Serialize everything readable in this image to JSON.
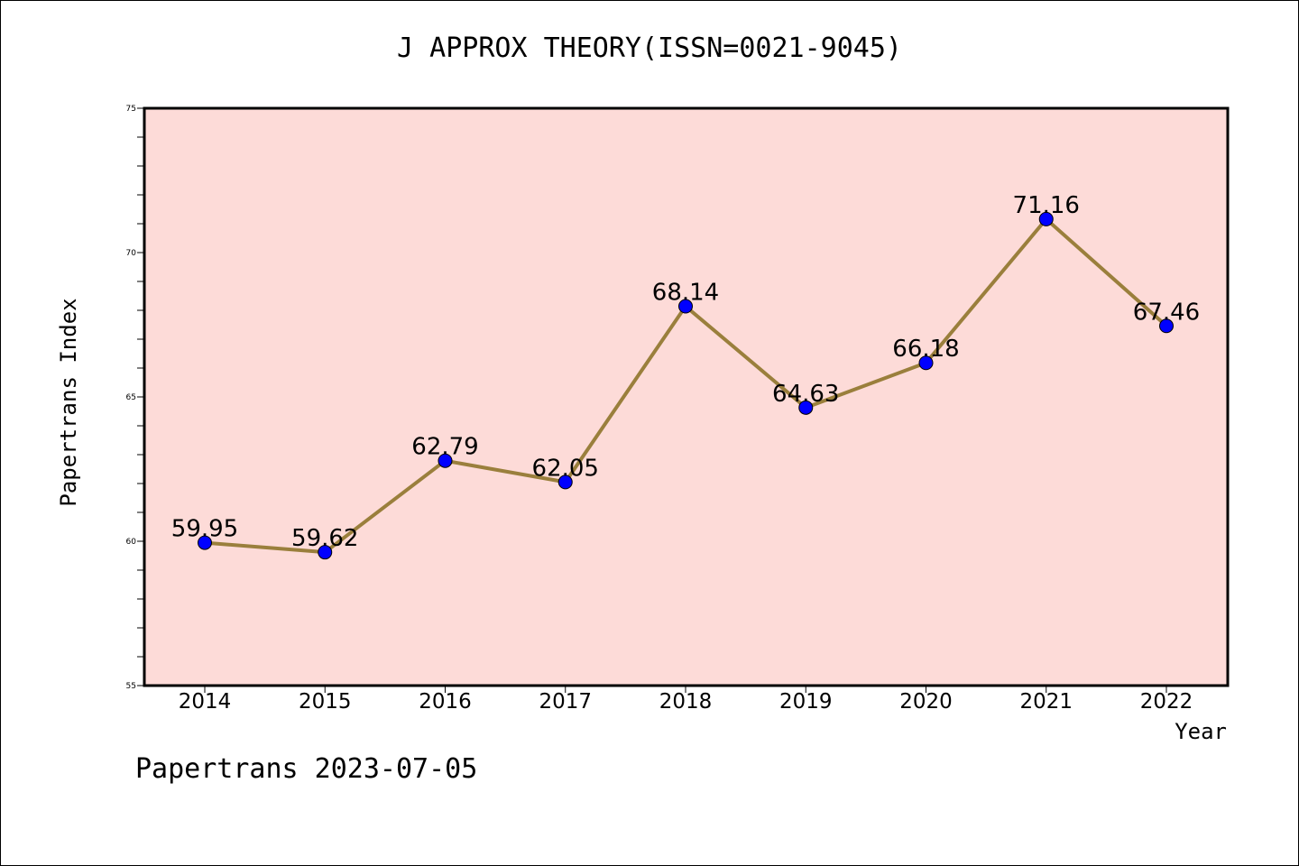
{
  "chart_data": {
    "type": "line",
    "title": "J APPROX THEORY(ISSN=0021-9045)",
    "xlabel": "Year",
    "ylabel": "Papertrans Index",
    "footer": "Papertrans 2023-07-05",
    "categories": [
      "2014",
      "2015",
      "2016",
      "2017",
      "2018",
      "2019",
      "2020",
      "2021",
      "2022"
    ],
    "values": [
      59.95,
      59.62,
      62.79,
      62.05,
      68.14,
      64.63,
      66.18,
      71.16,
      67.46
    ],
    "data_labels": [
      "59.95",
      "59.62",
      "62.79",
      "62.05",
      "68.14",
      "64.63",
      "66.18",
      "71.16",
      "67.46"
    ],
    "ylim": [
      55,
      75
    ],
    "yticks": [
      "55",
      "60",
      "65",
      "70",
      "75"
    ],
    "grid": false,
    "colors": {
      "plot_background": "#fddbd8",
      "line": "#9a7f3c",
      "marker": "#0000ff"
    }
  }
}
